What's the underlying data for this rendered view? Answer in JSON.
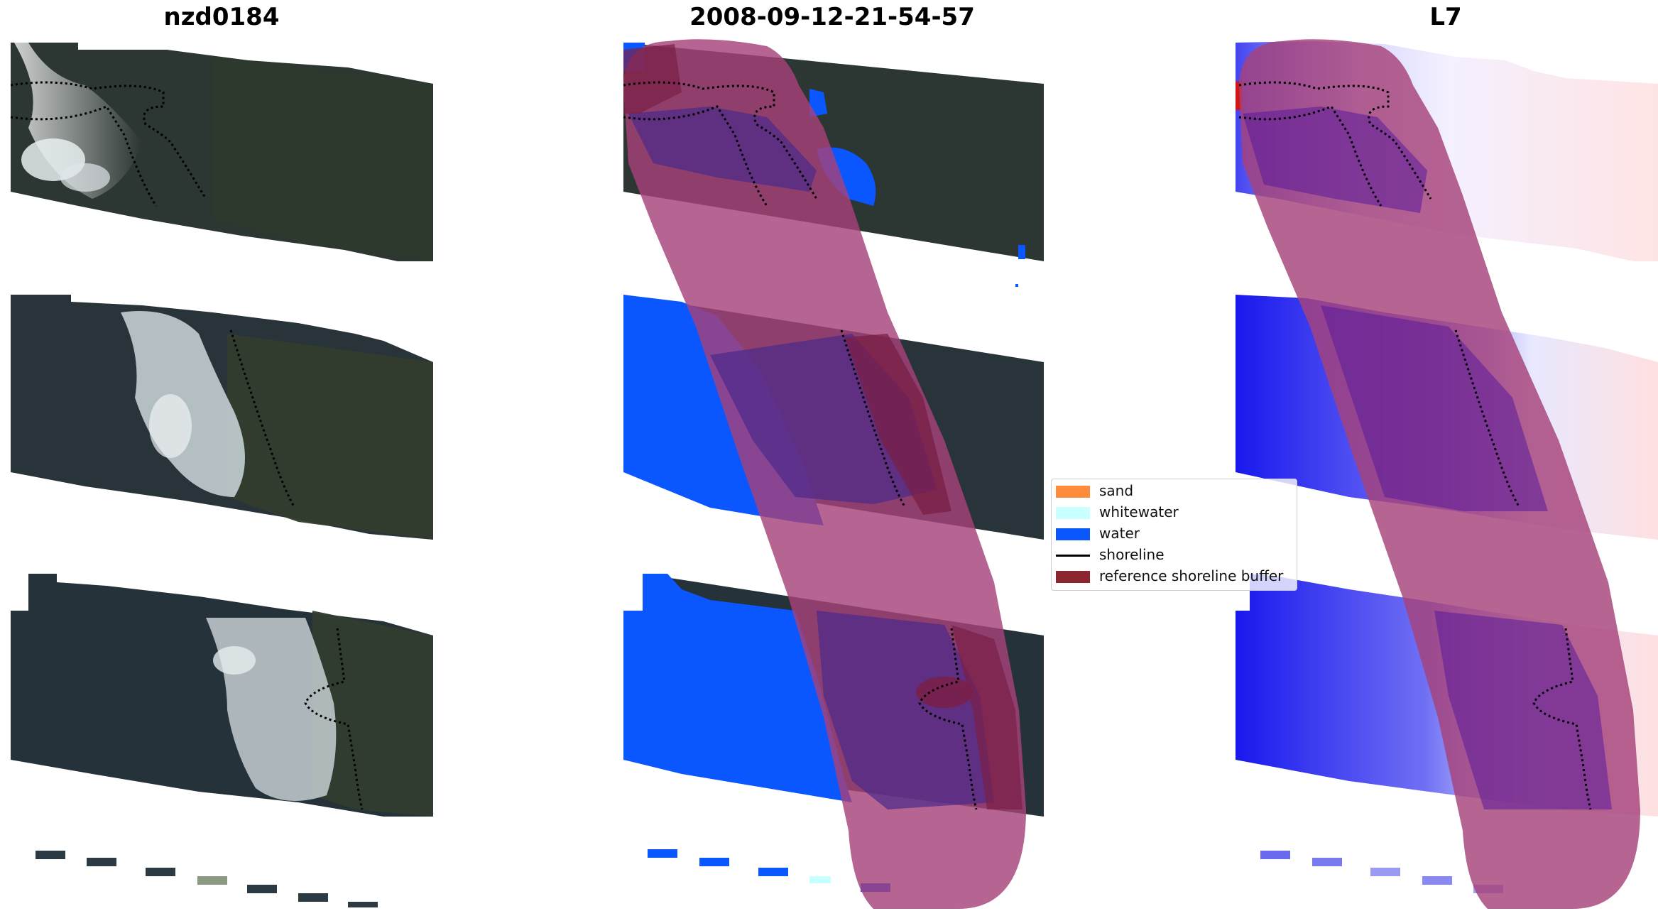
{
  "panels": [
    {
      "title": "nzd0184"
    },
    {
      "title": "2008-09-12-21-54-57"
    },
    {
      "title": "L7"
    }
  ],
  "legend": {
    "items": [
      {
        "label": "sand",
        "color": "#ff8c3a",
        "kind": "patch"
      },
      {
        "label": "whitewater",
        "color": "#c8ffff",
        "kind": "patch"
      },
      {
        "label": "water",
        "color": "#0b57ff",
        "kind": "patch"
      },
      {
        "label": "shoreline",
        "color": "#000000",
        "kind": "line"
      },
      {
        "label": "reference shoreline buffer",
        "color": "#8b2530",
        "kind": "patch"
      }
    ]
  },
  "colors": {
    "imagery_dark": "#2a3434",
    "imagery_green": "#3a4a2a",
    "whitewater_imagery": "#dfe8ec",
    "water_class": "#0b57ff",
    "buffer_overlay": "#a03a6e",
    "index_low": "#2020f0",
    "index_high": "#ffd0d0"
  }
}
